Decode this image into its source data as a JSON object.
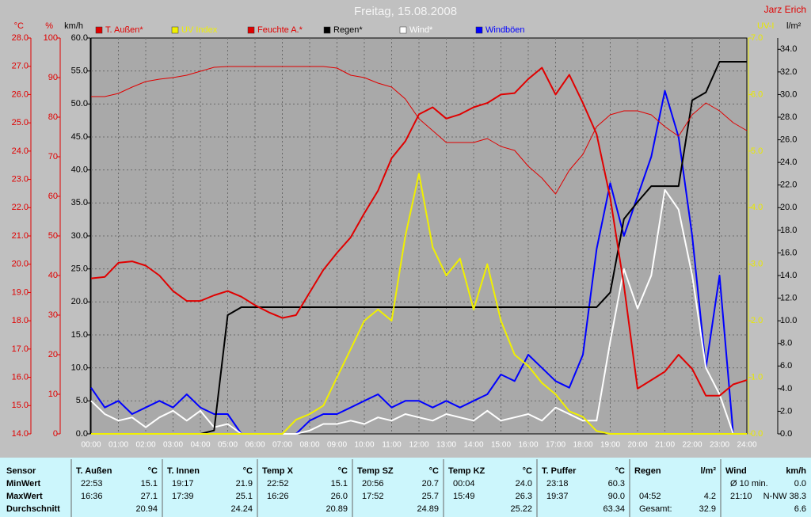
{
  "chart_data": {
    "type": "line",
    "title": "Freitag, 15.08.2008",
    "author": "Jarz Erich",
    "grid": true,
    "xlim": [
      0,
      24
    ],
    "xticks": [
      {
        "value": 0,
        "label": "00:00"
      },
      {
        "value": 1,
        "label": "01:00"
      },
      {
        "value": 2,
        "label": "02:00"
      },
      {
        "value": 3,
        "label": "03:00"
      },
      {
        "value": 4,
        "label": "04:00"
      },
      {
        "value": 5,
        "label": "05:00"
      },
      {
        "value": 6,
        "label": "06:00"
      },
      {
        "value": 7,
        "label": "07:00"
      },
      {
        "value": 8,
        "label": "08:00"
      },
      {
        "value": 9,
        "label": "09:00"
      },
      {
        "value": 10,
        "label": "10:00"
      },
      {
        "value": 11,
        "label": "11:00"
      },
      {
        "value": 12,
        "label": "12:00"
      },
      {
        "value": 13,
        "label": "13:00"
      },
      {
        "value": 14,
        "label": "14:00"
      },
      {
        "value": 15,
        "label": "15:00"
      },
      {
        "value": 16,
        "label": "16:00"
      },
      {
        "value": 17,
        "label": "17:00"
      },
      {
        "value": 18,
        "label": "18:00"
      },
      {
        "value": 19,
        "label": "19:00"
      },
      {
        "value": 20,
        "label": "20:00"
      },
      {
        "value": 21,
        "label": "21:00"
      },
      {
        "value": 22,
        "label": "22:00"
      },
      {
        "value": 23,
        "label": "23:00"
      },
      {
        "value": 24,
        "label": "24:00"
      }
    ],
    "axes": [
      {
        "label": "°C",
        "color": "#e00000",
        "lim": [
          14,
          28
        ],
        "ticks": [
          {
            "value": 14,
            "label": "14.0"
          },
          {
            "value": 15,
            "label": "15.0"
          },
          {
            "value": 16,
            "label": "16.0"
          },
          {
            "value": 17,
            "label": "17.0"
          },
          {
            "value": 18,
            "label": "18.0"
          },
          {
            "value": 19,
            "label": "19.0"
          },
          {
            "value": 20,
            "label": "20.0"
          },
          {
            "value": 21,
            "label": "21.0"
          },
          {
            "value": 22,
            "label": "22.0"
          },
          {
            "value": 23,
            "label": "23.0"
          },
          {
            "value": 24,
            "label": "24.0"
          },
          {
            "value": 25,
            "label": "25.0"
          },
          {
            "value": 26,
            "label": "26.0"
          },
          {
            "value": 27,
            "label": "27.0"
          },
          {
            "value": 28,
            "label": "28.0"
          }
        ]
      },
      {
        "label": "%",
        "color": "#e00000",
        "lim": [
          0,
          100
        ],
        "ticks": [
          0,
          10,
          20,
          30,
          40,
          50,
          60,
          70,
          80,
          90,
          100
        ]
      },
      {
        "label": "km/h",
        "color": "#000000",
        "lim": [
          0,
          60
        ],
        "ticks": [
          {
            "value": 0,
            "label": "0.0"
          },
          {
            "value": 5,
            "label": "5.0"
          },
          {
            "value": 10,
            "label": "10.0"
          },
          {
            "value": 15,
            "label": "15.0"
          },
          {
            "value": 20,
            "label": "20.0"
          },
          {
            "value": 25,
            "label": "25.0"
          },
          {
            "value": 30,
            "label": "30.0"
          },
          {
            "value": 35,
            "label": "35.0"
          },
          {
            "value": 40,
            "label": "40.0"
          },
          {
            "value": 45,
            "label": "45.0"
          },
          {
            "value": 50,
            "label": "50.0"
          },
          {
            "value": 55,
            "label": "55.0"
          },
          {
            "value": 60,
            "label": "60.0"
          }
        ]
      },
      {
        "label": "UV-I",
        "color": "#e8e800",
        "lim": [
          0,
          7
        ],
        "ticks": [
          {
            "value": 0,
            "label": "0.0"
          },
          {
            "value": 1,
            "label": "1.0"
          },
          {
            "value": 2,
            "label": "2.0"
          },
          {
            "value": 3,
            "label": "3.0"
          },
          {
            "value": 4,
            "label": "4.0"
          },
          {
            "value": 5,
            "label": "5.0"
          },
          {
            "value": 6,
            "label": "6.0"
          },
          {
            "value": 7,
            "label": "7.0"
          }
        ]
      },
      {
        "label": "l/m²",
        "color": "#000000",
        "lim": [
          0,
          35
        ],
        "ticks": [
          {
            "value": 0,
            "label": "0.0"
          },
          {
            "value": 2,
            "label": "2.0"
          },
          {
            "value": 4,
            "label": "4.0"
          },
          {
            "value": 6,
            "label": "6.0"
          },
          {
            "value": 8,
            "label": "8.0"
          },
          {
            "value": 10,
            "label": "10.0"
          },
          {
            "value": 12,
            "label": "12.0"
          },
          {
            "value": 14,
            "label": "14.0"
          },
          {
            "value": 16,
            "label": "16.0"
          },
          {
            "value": 18,
            "label": "18.0"
          },
          {
            "value": 20,
            "label": "20.0"
          },
          {
            "value": 22,
            "label": "22.0"
          },
          {
            "value": 24,
            "label": "24.0"
          },
          {
            "value": 26,
            "label": "26.0"
          },
          {
            "value": 28,
            "label": "28.0"
          },
          {
            "value": 30,
            "label": "30.0"
          },
          {
            "value": 32,
            "label": "32.0"
          },
          {
            "value": 34,
            "label": "34.0"
          }
        ]
      }
    ],
    "x": [
      0,
      0.5,
      1,
      1.5,
      2,
      2.5,
      3,
      3.5,
      4,
      4.5,
      5,
      5.5,
      6,
      6.5,
      7,
      7.5,
      8,
      8.5,
      9,
      9.5,
      10,
      10.5,
      11,
      11.5,
      12,
      12.5,
      13,
      13.5,
      14,
      14.5,
      15,
      15.5,
      16,
      16.5,
      17,
      17.5,
      18,
      18.5,
      19,
      19.5,
      20,
      20.5,
      21,
      21.5,
      22,
      22.5,
      23,
      23.5,
      24
    ],
    "series": [
      {
        "name": "T. Außen*",
        "color": "#e00000",
        "axis": 0,
        "line_width": 2,
        "values": [
          19.5,
          19.55,
          20.05,
          20.1,
          19.95,
          19.6,
          19.05,
          18.7,
          18.7,
          18.9,
          19.05,
          18.85,
          18.55,
          18.3,
          18.1,
          18.2,
          19,
          19.8,
          20.4,
          20.95,
          21.8,
          22.6,
          23.75,
          24.35,
          25.3,
          25.55,
          25.15,
          25.3,
          25.55,
          25.7,
          26,
          26.05,
          26.55,
          26.95,
          26,
          26.7,
          25.7,
          24.6,
          22.35,
          19.25,
          15.6,
          15.9,
          16.2,
          16.8,
          16.3,
          15.35,
          15.35,
          15.75,
          15.9
        ]
      },
      {
        "name": "UV Index",
        "color": "#f0f000",
        "axis": 3,
        "line_width": 2,
        "values": [
          0,
          0,
          0,
          0,
          0,
          0,
          0,
          0,
          0,
          0,
          0,
          0,
          0,
          0,
          0,
          0.25,
          0.35,
          0.5,
          1,
          1.5,
          2,
          2.2,
          2,
          3.5,
          4.6,
          3.3,
          2.8,
          3.1,
          2.2,
          3,
          2,
          1.4,
          1.2,
          0.9,
          0.7,
          0.4,
          0.3,
          0.05,
          0,
          0,
          0,
          0,
          0,
          0,
          0,
          0,
          0,
          0,
          0
        ]
      },
      {
        "name": "Feuchte A.*",
        "color": "#e00000",
        "axis": 1,
        "line_width": 1,
        "values": [
          85.2,
          85.2,
          86,
          87.6,
          89,
          89.6,
          90,
          90.6,
          91.6,
          92.6,
          92.8,
          92.8,
          92.8,
          92.8,
          92.8,
          92.8,
          92.8,
          92.8,
          92.4,
          90.6,
          90,
          88.6,
          87.6,
          84.6,
          79.6,
          76.6,
          73.6,
          73.6,
          73.6,
          74.6,
          72.6,
          71.6,
          67.6,
          64.6,
          60.6,
          66.6,
          70.6,
          77.6,
          80.6,
          81.6,
          81.6,
          80.6,
          77.6,
          75.2,
          80.6,
          83.6,
          81.6,
          78.6,
          76.6
        ]
      },
      {
        "name": "Regen*",
        "color": "#000000",
        "axis": 4,
        "line_width": 2,
        "values": [
          0,
          0,
          0,
          0,
          0,
          0,
          0,
          0,
          0,
          0.3,
          10.5,
          11.2,
          11.2,
          11.2,
          11.2,
          11.2,
          11.2,
          11.2,
          11.2,
          11.2,
          11.2,
          11.2,
          11.2,
          11.2,
          11.2,
          11.2,
          11.2,
          11.2,
          11.2,
          11.2,
          11.2,
          11.2,
          11.2,
          11.2,
          11.2,
          11.2,
          11.2,
          11.2,
          12.5,
          19,
          20.5,
          21.9,
          21.9,
          21.9,
          29.5,
          30.2,
          32.9,
          32.9,
          32.9
        ]
      },
      {
        "name": "Wind*",
        "color": "#ffffff",
        "axis": 2,
        "line_width": 2,
        "values": [
          5,
          3,
          2,
          2.5,
          1,
          2.5,
          3.5,
          2,
          3.5,
          1,
          1.5,
          0,
          0,
          0,
          0,
          0,
          0.5,
          1.5,
          1.5,
          2,
          1.5,
          2.5,
          2,
          3,
          2.5,
          2,
          3,
          2.5,
          2,
          3.5,
          2,
          2.5,
          3,
          2,
          4,
          3,
          2,
          2,
          14,
          25,
          19,
          24,
          37,
          34,
          24,
          10,
          6,
          0,
          0
        ]
      },
      {
        "name": "Windböen",
        "color": "#0000ff",
        "axis": 2,
        "line_width": 2,
        "values": [
          7,
          4,
          5,
          3,
          4,
          5,
          4,
          6,
          4,
          3,
          3,
          0,
          0,
          0,
          0,
          0,
          2,
          3,
          3,
          4,
          5,
          6,
          4,
          5,
          5,
          4,
          5,
          4,
          5,
          6,
          9,
          8,
          12,
          10,
          8,
          7,
          12,
          28,
          38,
          30,
          36,
          42,
          52,
          45,
          30,
          10,
          24,
          0,
          0
        ]
      }
    ]
  },
  "table": {
    "row_labels": [
      "Sensor",
      "MinWert",
      "MaxWert",
      "Durchschnitt"
    ],
    "columns": [
      {
        "name": "T. Außen",
        "unit": "°C",
        "min": [
          "22:53",
          "15.1"
        ],
        "max": [
          "16:36",
          "27.1"
        ],
        "avg": "20.94"
      },
      {
        "name": "T. Innen",
        "unit": "°C",
        "min": [
          "19:17",
          "21.9"
        ],
        "max": [
          "17:39",
          "25.1"
        ],
        "avg": "24.24"
      },
      {
        "name": "Temp X",
        "unit": "°C",
        "min": [
          "22:52",
          "15.1"
        ],
        "max": [
          "16:26",
          "26.0"
        ],
        "avg": "20.89"
      },
      {
        "name": "Temp SZ",
        "unit": "°C",
        "min": [
          "20:56",
          "20.7"
        ],
        "max": [
          "17:52",
          "25.7"
        ],
        "avg": "24.89"
      },
      {
        "name": "Temp KZ",
        "unit": "°C",
        "min": [
          "00:04",
          "24.0"
        ],
        "max": [
          "15:49",
          "26.3"
        ],
        "avg": "25.22"
      },
      {
        "name": "T. Puffer",
        "unit": "°C",
        "min": [
          "23:18",
          "60.3"
        ],
        "max": [
          "19:37",
          "90.0"
        ],
        "avg": "63.34"
      },
      {
        "name": "Regen",
        "unit": "l/m²",
        "max": [
          "04:52",
          "4.2"
        ],
        "avg": [
          "Gesamt:",
          "32.9"
        ]
      },
      {
        "name": "Wind",
        "unit": "km/h",
        "min": [
          "Ø 10 min.",
          "0.0"
        ],
        "max": [
          "21:10",
          "N-NW 38.3"
        ],
        "avg": "6.6"
      }
    ]
  }
}
